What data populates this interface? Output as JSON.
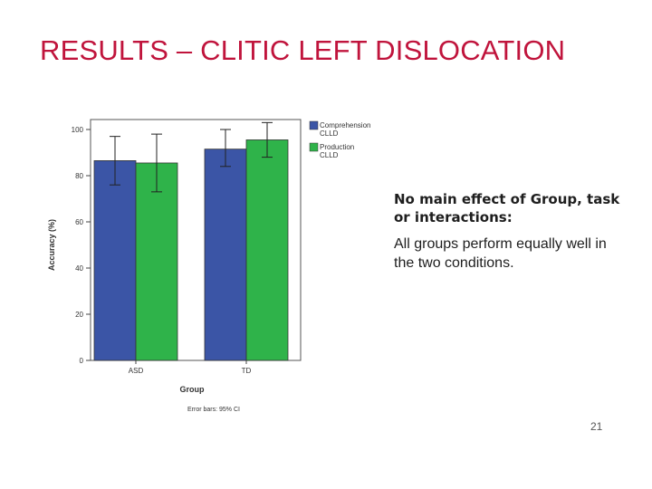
{
  "slide": {
    "title": "RESULTS – CLITIC LEFT DISLOCATION",
    "finding_heading": "No main effect of Group, task or interactions:",
    "finding_text": "All groups perform equally well in the two conditions.",
    "page_number": "21"
  },
  "colors": {
    "title": "#c0143c",
    "comprehension": "#3b55a6",
    "production": "#2fb34a"
  },
  "chart_data": {
    "type": "bar",
    "categories": [
      "ASD",
      "TD"
    ],
    "series": [
      {
        "name": "Comprehension CLLD",
        "values": [
          86.5,
          91.5
        ],
        "ci_low": [
          76,
          84
        ],
        "ci_high": [
          97,
          100
        ]
      },
      {
        "name": "Production CLLD",
        "values": [
          85.5,
          95.5
        ],
        "ci_low": [
          73,
          88
        ],
        "ci_high": [
          98,
          103
        ]
      }
    ],
    "xlabel": "Group",
    "ylabel": "Accuracy (%)",
    "yticks": [
      "0",
      "20",
      "40",
      "60",
      "80",
      "100"
    ],
    "ylim": [
      0,
      105
    ],
    "footnote": "Error bars: 95% CI",
    "legend_position": "top-right",
    "grid": false
  }
}
